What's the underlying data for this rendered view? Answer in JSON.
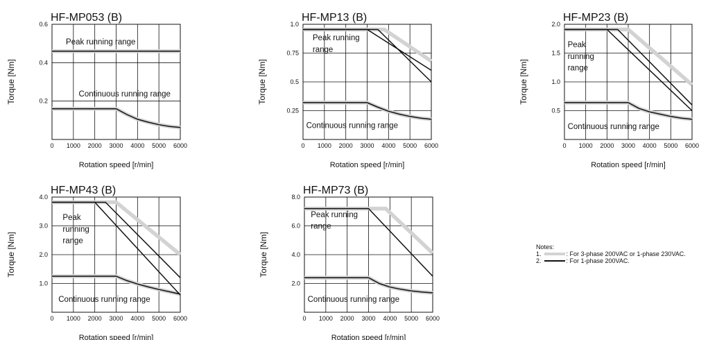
{
  "colors": {
    "gray": "#d3d3d3",
    "black": "#111111",
    "grid": "#111111"
  },
  "notes": {
    "title": "Notes:",
    "item1_num": "1.",
    "item1_text": ": For 3-phase 200VAC or 1-phase 230VAC.",
    "item2_num": "2.",
    "item2_text": ": For 1-phase 200VAC."
  },
  "chart_data": [
    {
      "type": "line",
      "title": "HF-MP053 (B)",
      "xlabel": "Rotation speed [r/min]",
      "ylabel": "Torque [Nm]",
      "xlim": [
        0,
        6000
      ],
      "ylim": [
        0,
        0.6
      ],
      "xticks": [
        "0",
        "1000",
        "2000",
        "3000",
        "4000",
        "5000",
        "6000"
      ],
      "yticks": [
        {
          "value": 0.2,
          "label": "0.2"
        },
        {
          "value": 0.4,
          "label": "0.4"
        },
        {
          "value": 0.6,
          "label": "0.6"
        }
      ],
      "grid": true,
      "annotations": [
        {
          "text": "Peak running range",
          "x": 650,
          "y": 0.495
        },
        {
          "text": "Continuous running range",
          "x": 1250,
          "y": 0.225
        }
      ],
      "series": [
        {
          "note": 1,
          "x": [
            0,
            6000
          ],
          "y": [
            0.46,
            0.46
          ]
        },
        {
          "note": 2,
          "x": [
            0,
            6000
          ],
          "y": [
            0.46,
            0.46
          ]
        },
        {
          "note": 1,
          "x": [
            0,
            3000,
            3500,
            4000,
            4500,
            5000,
            5500,
            6000
          ],
          "y": [
            0.16,
            0.16,
            0.13,
            0.105,
            0.09,
            0.077,
            0.068,
            0.062
          ]
        },
        {
          "note": 2,
          "x": [
            0,
            3000,
            3500,
            4000,
            4500,
            5000,
            5500,
            6000
          ],
          "y": [
            0.16,
            0.16,
            0.13,
            0.105,
            0.09,
            0.077,
            0.068,
            0.062
          ]
        }
      ]
    },
    {
      "type": "line",
      "title": "HF-MP13 (B)",
      "xlabel": "Rotation speed [r/min]",
      "ylabel": "Torque [Nm]",
      "xlim": [
        0,
        6000
      ],
      "ylim": [
        0,
        1.0
      ],
      "xticks": [
        "0",
        "1000",
        "2000",
        "3000",
        "4000",
        "5000",
        "6000"
      ],
      "yticks": [
        {
          "value": 0.25,
          "label": "0.25"
        },
        {
          "value": 0.5,
          "label": "0.5"
        },
        {
          "value": 0.75,
          "label": "0.75"
        },
        {
          "value": 1.0,
          "label": "1.0"
        }
      ],
      "grid": true,
      "annotations": [
        {
          "text": "Peak running",
          "x": 450,
          "y": 0.86
        },
        {
          "text": "range",
          "x": 450,
          "y": 0.76
        },
        {
          "text": "Continuous running range",
          "x": 150,
          "y": 0.1
        }
      ],
      "series": [
        {
          "note": 1,
          "x": [
            0,
            3800,
            6000
          ],
          "y": [
            0.955,
            0.955,
            0.68
          ]
        },
        {
          "note": 2,
          "x": [
            0,
            3000,
            6000
          ],
          "y": [
            0.955,
            0.955,
            0.6
          ]
        },
        {
          "note": 2,
          "x": [
            0,
            3500,
            6000
          ],
          "y": [
            0.955,
            0.955,
            0.5
          ]
        },
        {
          "note": 1,
          "x": [
            0,
            3000,
            3500,
            4000,
            4500,
            5000,
            5500,
            6000
          ],
          "y": [
            0.32,
            0.32,
            0.28,
            0.245,
            0.22,
            0.2,
            0.185,
            0.175
          ]
        },
        {
          "note": 2,
          "x": [
            0,
            3000,
            3500,
            4000,
            4500,
            5000,
            5500,
            6000
          ],
          "y": [
            0.32,
            0.32,
            0.28,
            0.245,
            0.22,
            0.2,
            0.185,
            0.175
          ]
        }
      ]
    },
    {
      "type": "line",
      "title": "HF-MP23 (B)",
      "xlabel": "Rotation speed [r/min]",
      "ylabel": "Torque [Nm]",
      "xlim": [
        0,
        6000
      ],
      "ylim": [
        0,
        2.0
      ],
      "xticks": [
        "0",
        "1000",
        "2000",
        "3000",
        "4000",
        "5000",
        "6000"
      ],
      "yticks": [
        {
          "value": 0.5,
          "label": "0.5"
        },
        {
          "value": 1.0,
          "label": "1.0"
        },
        {
          "value": 1.5,
          "label": "1.5"
        },
        {
          "value": 2.0,
          "label": "2.0"
        }
      ],
      "grid": true,
      "annotations": [
        {
          "text": "Peak",
          "x": 150,
          "y": 1.6
        },
        {
          "text": "running",
          "x": 150,
          "y": 1.4
        },
        {
          "text": "range",
          "x": 150,
          "y": 1.2
        },
        {
          "text": "Continuous running range",
          "x": 150,
          "y": 0.18
        }
      ],
      "series": [
        {
          "note": 1,
          "x": [
            0,
            3000,
            6000
          ],
          "y": [
            1.91,
            1.91,
            0.95
          ]
        },
        {
          "note": 2,
          "x": [
            0,
            2000,
            6000
          ],
          "y": [
            1.91,
            1.91,
            0.5
          ]
        },
        {
          "note": 2,
          "x": [
            0,
            2500,
            6000
          ],
          "y": [
            1.91,
            1.91,
            0.6
          ]
        },
        {
          "note": 1,
          "x": [
            0,
            3000,
            3500,
            4000,
            4500,
            5000,
            5500,
            6000
          ],
          "y": [
            0.64,
            0.64,
            0.54,
            0.48,
            0.44,
            0.4,
            0.37,
            0.35
          ]
        },
        {
          "note": 2,
          "x": [
            0,
            3000,
            3500,
            4000,
            4500,
            5000,
            5500,
            6000
          ],
          "y": [
            0.64,
            0.64,
            0.54,
            0.48,
            0.44,
            0.4,
            0.37,
            0.35
          ]
        }
      ]
    },
    {
      "type": "line",
      "title": "HF-MP43 (B)",
      "xlabel": "Rotation speed [r/min]",
      "ylabel": "Torque [Nm]",
      "xlim": [
        0,
        6000
      ],
      "ylim": [
        0,
        4.0
      ],
      "xticks": [
        "0",
        "1000",
        "2000",
        "3000",
        "4000",
        "5000",
        "6000"
      ],
      "yticks": [
        {
          "value": 1.0,
          "label": "1.0"
        },
        {
          "value": 2.0,
          "label": "2.0"
        },
        {
          "value": 3.0,
          "label": "3.0"
        },
        {
          "value": 4.0,
          "label": "4.0"
        }
      ],
      "grid": true,
      "annotations": [
        {
          "text": "Peak",
          "x": 500,
          "y": 3.2
        },
        {
          "text": "running",
          "x": 500,
          "y": 2.8
        },
        {
          "text": "range",
          "x": 500,
          "y": 2.4
        },
        {
          "text": "Continuous running range",
          "x": 300,
          "y": 0.36
        }
      ],
      "series": [
        {
          "note": 1,
          "x": [
            0,
            3000,
            6000
          ],
          "y": [
            3.82,
            3.82,
            2.0
          ]
        },
        {
          "note": 2,
          "x": [
            0,
            2000,
            6000
          ],
          "y": [
            3.82,
            3.82,
            0.6
          ]
        },
        {
          "note": 2,
          "x": [
            0,
            2500,
            6000
          ],
          "y": [
            3.82,
            3.82,
            1.2
          ]
        },
        {
          "note": 1,
          "x": [
            0,
            3000,
            3500,
            4000,
            4500,
            5000,
            5500,
            6000
          ],
          "y": [
            1.25,
            1.25,
            1.1,
            0.98,
            0.88,
            0.79,
            0.71,
            0.63
          ]
        },
        {
          "note": 2,
          "x": [
            0,
            3000,
            3500,
            4000,
            4500,
            5000,
            5500,
            6000
          ],
          "y": [
            1.25,
            1.25,
            1.1,
            0.98,
            0.88,
            0.79,
            0.71,
            0.63
          ]
        }
      ]
    },
    {
      "type": "line",
      "title": "HF-MP73 (B)",
      "xlabel": "Rotation speed [r/min]",
      "ylabel": "Torque [Nm]",
      "xlim": [
        0,
        6000
      ],
      "ylim": [
        0,
        8.0
      ],
      "xticks": [
        "0",
        "1000",
        "2000",
        "3000",
        "4000",
        "5000",
        "6000"
      ],
      "yticks": [
        {
          "value": 2.0,
          "label": "2.0"
        },
        {
          "value": 4.0,
          "label": "4.0"
        },
        {
          "value": 6.0,
          "label": "6.0"
        },
        {
          "value": 8.0,
          "label": "8.0"
        }
      ],
      "grid": true,
      "annotations": [
        {
          "text": "Peak running",
          "x": 300,
          "y": 6.6
        },
        {
          "text": "range",
          "x": 300,
          "y": 5.8
        },
        {
          "text": "Continuous running range",
          "x": 150,
          "y": 0.72
        }
      ],
      "series": [
        {
          "note": 1,
          "x": [
            0,
            3800,
            6000
          ],
          "y": [
            7.2,
            7.2,
            4.1
          ]
        },
        {
          "note": 2,
          "x": [
            0,
            3000,
            6000
          ],
          "y": [
            7.2,
            7.2,
            2.5
          ]
        },
        {
          "note": 1,
          "x": [
            0,
            3000,
            3500,
            4000,
            4500,
            5000,
            5500,
            6000
          ],
          "y": [
            2.4,
            2.4,
            2.0,
            1.75,
            1.6,
            1.48,
            1.4,
            1.35
          ]
        },
        {
          "note": 2,
          "x": [
            0,
            3000,
            3500,
            4000,
            4500,
            5000,
            5500,
            6000
          ],
          "y": [
            2.4,
            2.4,
            2.0,
            1.75,
            1.6,
            1.48,
            1.4,
            1.35
          ]
        }
      ]
    }
  ]
}
